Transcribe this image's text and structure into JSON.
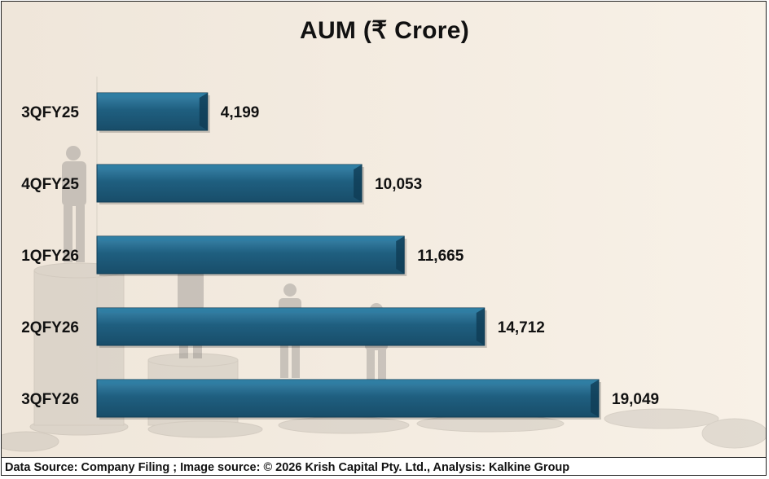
{
  "chart_data": {
    "type": "bar",
    "orientation": "horizontal",
    "title": "AUM (₹ Crore)",
    "categories": [
      "3QFY25",
      "4QFY25",
      "1QFY26",
      "2QFY26",
      "3QFY26"
    ],
    "values": [
      4199,
      10053,
      11665,
      14712,
      19049
    ],
    "value_labels": [
      "4,199",
      "10,053",
      "11,665",
      "14,712",
      "19,049"
    ],
    "xlim": [
      0,
      20000
    ],
    "xlabel": "",
    "ylabel": "",
    "grid": false,
    "legend": "none",
    "colors": {
      "bar": "#1f5f80",
      "bar_highlight": "#2e7da3",
      "bar_shadow": "#0f3c55"
    }
  },
  "footer": {
    "source": "Data Source: Company Filing ; Image source: © 2026 Krish Capital Pty. Ltd., Analysis: Kalkine Group"
  }
}
